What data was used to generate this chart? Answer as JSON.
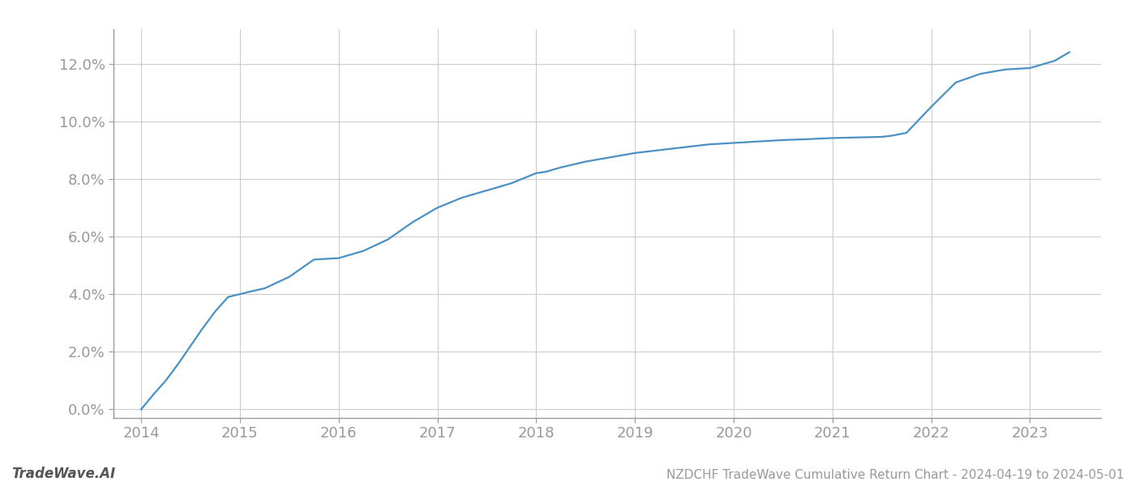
{
  "title": "NZDCHF TradeWave Cumulative Return Chart - 2024-04-19 to 2024-05-01",
  "watermark": "TradeWave.AI",
  "line_color": "#4a90c4",
  "background_color": "#ffffff",
  "grid_color": "#cccccc",
  "x_values": [
    2014.0,
    2014.12,
    2014.25,
    2014.38,
    2014.5,
    2014.62,
    2014.75,
    2014.88,
    2015.0,
    2015.12,
    2015.25,
    2015.5,
    2015.75,
    2016.0,
    2016.25,
    2016.5,
    2016.75,
    2017.0,
    2017.25,
    2017.5,
    2017.75,
    2018.0,
    2018.1,
    2018.25,
    2018.5,
    2018.75,
    2019.0,
    2019.25,
    2019.5,
    2019.75,
    2020.0,
    2020.25,
    2020.5,
    2020.75,
    2021.0,
    2021.25,
    2021.5,
    2021.6,
    2021.75,
    2022.0,
    2022.25,
    2022.5,
    2022.75,
    2023.0,
    2023.25,
    2023.4
  ],
  "y_values": [
    0.0,
    0.5,
    1.0,
    1.6,
    2.2,
    2.8,
    3.4,
    3.9,
    4.0,
    4.1,
    4.2,
    4.6,
    5.2,
    5.25,
    5.5,
    5.9,
    6.5,
    7.0,
    7.35,
    7.6,
    7.85,
    8.2,
    8.25,
    8.4,
    8.6,
    8.75,
    8.9,
    9.0,
    9.1,
    9.2,
    9.25,
    9.3,
    9.35,
    9.38,
    9.42,
    9.44,
    9.46,
    9.5,
    9.6,
    10.5,
    11.35,
    11.65,
    11.8,
    11.85,
    12.1,
    12.4
  ],
  "xlim": [
    2013.72,
    2023.72
  ],
  "ylim": [
    -0.3,
    13.2
  ],
  "yticks": [
    0.0,
    2.0,
    4.0,
    6.0,
    8.0,
    10.0,
    12.0
  ],
  "xticks": [
    2014,
    2015,
    2016,
    2017,
    2018,
    2019,
    2020,
    2021,
    2022,
    2023
  ],
  "tick_color": "#999999",
  "spine_color": "#999999",
  "label_fontsize": 13,
  "title_fontsize": 11,
  "watermark_fontsize": 12,
  "line_width": 1.6
}
